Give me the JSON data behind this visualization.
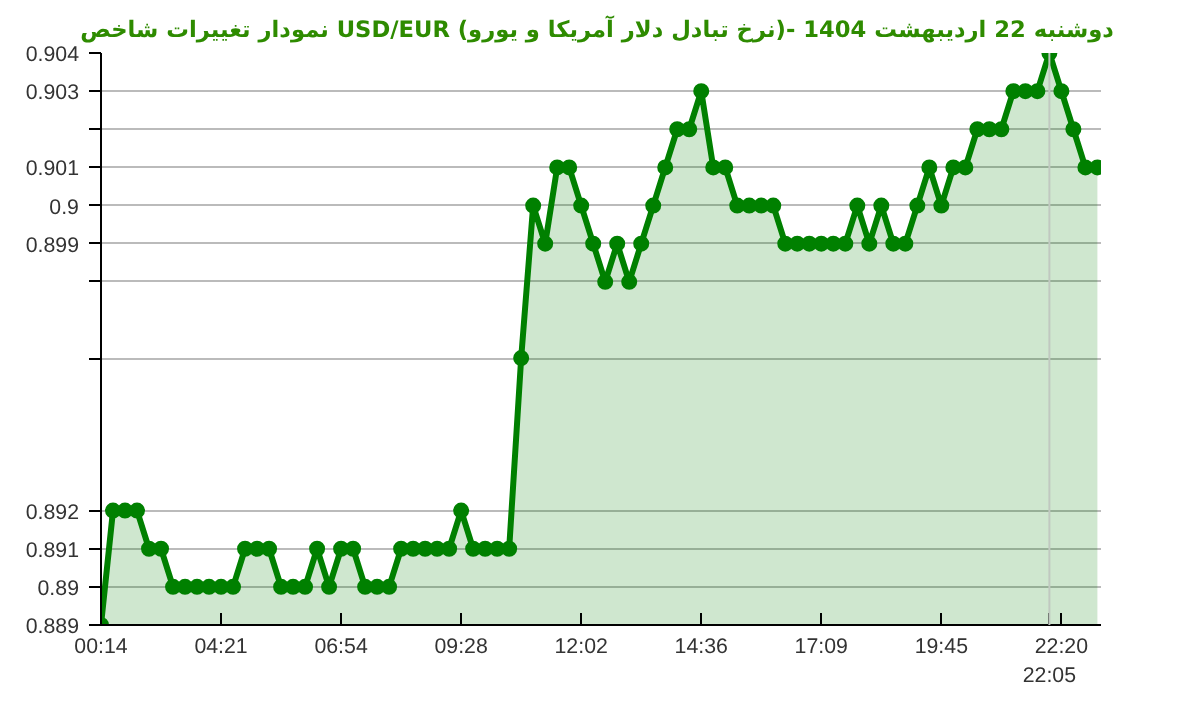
{
  "chart_data": {
    "type": "area",
    "title": "نمودار تغییرات شاخص USD/EUR (نرخ تبادل دلار آمریکا و یورو)- دوشنبه  22 اردیبهشت 1404",
    "categories": [
      "00:14",
      null,
      null,
      null,
      null,
      null,
      null,
      null,
      null,
      null,
      "04:21",
      null,
      null,
      null,
      null,
      null,
      null,
      null,
      null,
      null,
      "06:54",
      null,
      null,
      null,
      null,
      null,
      null,
      null,
      null,
      null,
      "09:28",
      null,
      null,
      null,
      null,
      null,
      null,
      null,
      null,
      null,
      "12:02",
      null,
      null,
      null,
      null,
      null,
      null,
      null,
      null,
      null,
      "14:36",
      null,
      null,
      null,
      null,
      null,
      null,
      null,
      null,
      null,
      "17:09",
      null,
      null,
      null,
      null,
      null,
      null,
      null,
      null,
      null,
      "19:45",
      null,
      null,
      null,
      null,
      null,
      null,
      null,
      null,
      "22:05",
      "22:20",
      null,
      null,
      null
    ],
    "series": [
      {
        "color": "#008000",
        "values": [
          0.889,
          0.892,
          0.892,
          0.892,
          0.891,
          0.891,
          0.89,
          0.89,
          0.89,
          0.89,
          0.89,
          0.89,
          0.891,
          0.891,
          0.891,
          0.89,
          0.89,
          0.89,
          0.891,
          0.89,
          0.891,
          0.891,
          0.89,
          0.89,
          0.89,
          0.891,
          0.891,
          0.891,
          0.891,
          0.891,
          0.892,
          0.891,
          0.891,
          0.891,
          0.891,
          0.896,
          0.9,
          0.899,
          0.901,
          0.901,
          0.9,
          0.899,
          0.898,
          0.899,
          0.898,
          0.899,
          0.9,
          0.901,
          0.902,
          0.902,
          0.903,
          0.901,
          0.901,
          0.9,
          0.9,
          0.9,
          0.9,
          0.899,
          0.899,
          0.899,
          0.899,
          0.899,
          0.899,
          0.9,
          0.899,
          0.9,
          0.899,
          0.899,
          0.9,
          0.901,
          0.9,
          0.901,
          0.901,
          0.902,
          0.902,
          0.902,
          0.903,
          0.903,
          0.903,
          0.904,
          0.903,
          0.902,
          0.901,
          0.901
        ]
      }
    ],
    "ylim": [
      0.889,
      0.904
    ],
    "yticks": [
      0.889,
      0.89,
      0.891,
      0.892,
      {
        "value": 0.896,
        "label": null
      },
      {
        "value": 0.898,
        "label": null
      },
      0.899,
      0.9,
      0.901,
      {
        "value": 0.902,
        "label": null
      },
      0.903,
      0.904
    ],
    "ref_lines": [
      {
        "axis": "x",
        "value": "22:05",
        "color": "#c0c8c0"
      }
    ],
    "grid": "y",
    "marker": "circle"
  }
}
